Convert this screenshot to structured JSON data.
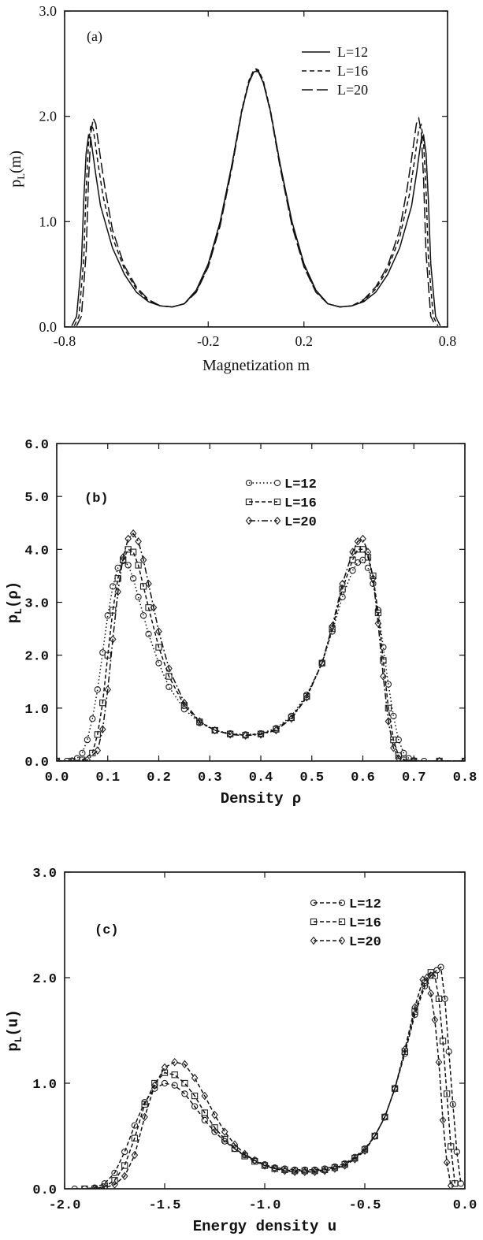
{
  "chart_data": [
    {
      "type": "line",
      "panel": "(a)",
      "xlabel": "Magnetization m",
      "ylabel": "p_L(m)",
      "xlim": [
        -0.8,
        0.8
      ],
      "ylim": [
        0.0,
        3.0
      ],
      "xticks": [
        "-0.8",
        "-0.2",
        "0.2",
        "0.8"
      ],
      "yticks": [
        "0.0",
        "1.0",
        "2.0",
        "3.0"
      ],
      "legend_position": "top-right",
      "grid": false,
      "series": [
        {
          "name": "L=12",
          "dash": "solid",
          "x": [
            -0.77,
            -0.75,
            -0.73,
            -0.72,
            -0.71,
            -0.7,
            -0.69,
            -0.67,
            -0.65,
            -0.6,
            -0.55,
            -0.5,
            -0.45,
            -0.4,
            -0.35,
            -0.3,
            -0.25,
            -0.2,
            -0.15,
            -0.1,
            -0.06,
            -0.03,
            -0.01,
            0.0,
            0.01,
            0.03,
            0.06,
            0.1,
            0.15,
            0.2,
            0.25,
            0.3,
            0.35,
            0.4,
            0.45,
            0.5,
            0.55,
            0.6,
            0.65,
            0.67,
            0.69,
            0.7,
            0.71,
            0.72,
            0.73,
            0.75,
            0.77
          ],
          "y": [
            0.01,
            0.1,
            0.6,
            1.2,
            1.65,
            1.82,
            1.78,
            1.45,
            1.15,
            0.75,
            0.5,
            0.33,
            0.24,
            0.2,
            0.19,
            0.22,
            0.35,
            0.6,
            1.0,
            1.55,
            2.05,
            2.32,
            2.42,
            2.43,
            2.42,
            2.32,
            2.05,
            1.55,
            1.0,
            0.6,
            0.35,
            0.22,
            0.19,
            0.2,
            0.24,
            0.33,
            0.5,
            0.75,
            1.15,
            1.45,
            1.78,
            1.82,
            1.65,
            1.2,
            0.6,
            0.1,
            0.01
          ]
        },
        {
          "name": "L=16",
          "dash": "short-dash",
          "x": [
            -0.76,
            -0.74,
            -0.72,
            -0.71,
            -0.7,
            -0.69,
            -0.68,
            -0.66,
            -0.64,
            -0.6,
            -0.55,
            -0.5,
            -0.45,
            -0.4,
            -0.35,
            -0.3,
            -0.25,
            -0.2,
            -0.15,
            -0.1,
            -0.06,
            -0.03,
            -0.01,
            0.0,
            0.01,
            0.03,
            0.06,
            0.1,
            0.15,
            0.2,
            0.25,
            0.3,
            0.35,
            0.4,
            0.45,
            0.5,
            0.55,
            0.6,
            0.64,
            0.66,
            0.68,
            0.69,
            0.7,
            0.71,
            0.72,
            0.74,
            0.76
          ],
          "y": [
            0.01,
            0.1,
            0.65,
            1.3,
            1.75,
            1.92,
            1.88,
            1.55,
            1.25,
            0.85,
            0.55,
            0.36,
            0.25,
            0.2,
            0.19,
            0.22,
            0.34,
            0.58,
            0.98,
            1.55,
            2.06,
            2.34,
            2.44,
            2.45,
            2.44,
            2.34,
            2.06,
            1.55,
            0.98,
            0.58,
            0.34,
            0.22,
            0.19,
            0.2,
            0.25,
            0.36,
            0.55,
            0.85,
            1.25,
            1.55,
            1.88,
            1.92,
            1.75,
            1.3,
            0.65,
            0.1,
            0.01
          ]
        },
        {
          "name": "L=20",
          "dash": "long-dash",
          "x": [
            -0.75,
            -0.73,
            -0.71,
            -0.7,
            -0.69,
            -0.68,
            -0.67,
            -0.65,
            -0.63,
            -0.6,
            -0.55,
            -0.5,
            -0.45,
            -0.4,
            -0.35,
            -0.3,
            -0.25,
            -0.2,
            -0.15,
            -0.1,
            -0.06,
            -0.03,
            -0.01,
            0.0,
            0.01,
            0.03,
            0.06,
            0.1,
            0.15,
            0.2,
            0.25,
            0.3,
            0.35,
            0.4,
            0.45,
            0.5,
            0.55,
            0.6,
            0.63,
            0.65,
            0.67,
            0.68,
            0.69,
            0.7,
            0.71,
            0.73,
            0.75
          ],
          "y": [
            0.01,
            0.1,
            0.7,
            1.4,
            1.85,
            1.98,
            1.93,
            1.6,
            1.3,
            0.92,
            0.58,
            0.38,
            0.26,
            0.2,
            0.19,
            0.22,
            0.33,
            0.57,
            0.96,
            1.52,
            2.04,
            2.33,
            2.43,
            2.44,
            2.43,
            2.33,
            2.04,
            1.52,
            0.96,
            0.57,
            0.33,
            0.22,
            0.19,
            0.2,
            0.26,
            0.38,
            0.58,
            0.92,
            1.3,
            1.6,
            1.93,
            1.98,
            1.85,
            1.4,
            0.7,
            0.1,
            0.01
          ]
        }
      ]
    },
    {
      "type": "line",
      "panel": "(b)",
      "xlabel": "Density ρ",
      "ylabel": "p_L(ρ)",
      "xlim": [
        0.0,
        0.8
      ],
      "ylim": [
        0.0,
        6.0
      ],
      "xticks": [
        "0.0",
        "0.1",
        "0.2",
        "0.3",
        "0.4",
        "0.5",
        "0.6",
        "0.7",
        "0.8"
      ],
      "yticks": [
        "0.0",
        "1.0",
        "2.0",
        "3.0",
        "4.0",
        "5.0",
        "6.0"
      ],
      "legend_position": "top-center",
      "grid": false,
      "series": [
        {
          "name": "L=12",
          "marker": "circle",
          "line": "dotted",
          "x": [
            0.0,
            0.02,
            0.04,
            0.05,
            0.06,
            0.07,
            0.08,
            0.09,
            0.1,
            0.11,
            0.12,
            0.13,
            0.14,
            0.15,
            0.16,
            0.17,
            0.18,
            0.2,
            0.22,
            0.25,
            0.28,
            0.31,
            0.34,
            0.37,
            0.4,
            0.43,
            0.46,
            0.49,
            0.52,
            0.54,
            0.56,
            0.58,
            0.59,
            0.6,
            0.61,
            0.62,
            0.63,
            0.64,
            0.65,
            0.66,
            0.67,
            0.68,
            0.69,
            0.7,
            0.72,
            0.75,
            0.8
          ],
          "y": [
            0.0,
            0.0,
            0.05,
            0.15,
            0.4,
            0.8,
            1.35,
            2.05,
            2.75,
            3.3,
            3.65,
            3.78,
            3.7,
            3.45,
            3.1,
            2.75,
            2.4,
            1.85,
            1.4,
            0.98,
            0.72,
            0.58,
            0.52,
            0.5,
            0.52,
            0.62,
            0.85,
            1.25,
            1.85,
            2.45,
            3.1,
            3.6,
            3.75,
            3.8,
            3.65,
            3.35,
            2.85,
            2.15,
            1.45,
            0.85,
            0.4,
            0.15,
            0.05,
            0.01,
            0.0,
            0.0,
            0.0
          ]
        },
        {
          "name": "L=16",
          "marker": "square",
          "line": "dashed",
          "x": [
            0.0,
            0.03,
            0.05,
            0.07,
            0.08,
            0.09,
            0.1,
            0.11,
            0.12,
            0.13,
            0.14,
            0.15,
            0.16,
            0.17,
            0.18,
            0.2,
            0.22,
            0.25,
            0.28,
            0.31,
            0.34,
            0.37,
            0.4,
            0.43,
            0.46,
            0.49,
            0.52,
            0.54,
            0.56,
            0.58,
            0.59,
            0.6,
            0.61,
            0.62,
            0.63,
            0.64,
            0.65,
            0.66,
            0.67,
            0.68,
            0.7,
            0.75,
            0.8
          ],
          "y": [
            0.0,
            0.0,
            0.02,
            0.15,
            0.5,
            1.1,
            2.0,
            2.85,
            3.45,
            3.8,
            4.0,
            3.95,
            3.7,
            3.3,
            2.9,
            2.15,
            1.6,
            1.05,
            0.74,
            0.58,
            0.51,
            0.49,
            0.51,
            0.6,
            0.82,
            1.22,
            1.85,
            2.5,
            3.25,
            3.8,
            4.0,
            4.0,
            3.85,
            3.5,
            2.8,
            1.9,
            1.0,
            0.4,
            0.1,
            0.02,
            0.0,
            0.0,
            0.0
          ]
        },
        {
          "name": "L=20",
          "marker": "diamond",
          "line": "dash-dot",
          "x": [
            0.0,
            0.03,
            0.06,
            0.08,
            0.09,
            0.1,
            0.11,
            0.12,
            0.13,
            0.14,
            0.15,
            0.16,
            0.17,
            0.18,
            0.19,
            0.2,
            0.22,
            0.25,
            0.28,
            0.31,
            0.34,
            0.37,
            0.4,
            0.43,
            0.46,
            0.49,
            0.52,
            0.54,
            0.56,
            0.58,
            0.59,
            0.6,
            0.61,
            0.62,
            0.63,
            0.64,
            0.65,
            0.66,
            0.67,
            0.7,
            0.75,
            0.8
          ],
          "y": [
            0.0,
            0.0,
            0.02,
            0.2,
            0.6,
            1.35,
            2.3,
            3.2,
            3.85,
            4.2,
            4.3,
            4.15,
            3.8,
            3.35,
            2.9,
            2.45,
            1.75,
            1.1,
            0.75,
            0.58,
            0.5,
            0.48,
            0.5,
            0.58,
            0.8,
            1.2,
            1.85,
            2.55,
            3.35,
            3.95,
            4.15,
            4.2,
            3.95,
            3.45,
            2.6,
            1.6,
            0.75,
            0.25,
            0.05,
            0.0,
            0.0,
            0.0
          ]
        }
      ]
    },
    {
      "type": "line",
      "panel": "(c)",
      "xlabel": "Energy density u",
      "ylabel": "p_L(u)",
      "xlim": [
        -2.0,
        0.0
      ],
      "ylim": [
        0.0,
        3.0
      ],
      "xticks": [
        "-2.0",
        "-1.5",
        "-1.0",
        "-0.5",
        "0.0"
      ],
      "yticks": [
        "0.0",
        "1.0",
        "2.0",
        "3.0"
      ],
      "legend_position": "top-right",
      "grid": false,
      "series": [
        {
          "name": "L=12",
          "marker": "circle",
          "line": "dashed",
          "x": [
            -1.95,
            -1.9,
            -1.85,
            -1.8,
            -1.75,
            -1.7,
            -1.65,
            -1.6,
            -1.55,
            -1.5,
            -1.45,
            -1.4,
            -1.35,
            -1.3,
            -1.25,
            -1.2,
            -1.15,
            -1.1,
            -1.05,
            -1.0,
            -0.95,
            -0.9,
            -0.85,
            -0.8,
            -0.75,
            -0.7,
            -0.65,
            -0.6,
            -0.55,
            -0.5,
            -0.45,
            -0.4,
            -0.35,
            -0.3,
            -0.25,
            -0.2,
            -0.17,
            -0.14,
            -0.12,
            -0.1,
            -0.08,
            -0.06,
            -0.04,
            -0.02
          ],
          "y": [
            0.0,
            0.0,
            0.01,
            0.05,
            0.15,
            0.35,
            0.6,
            0.82,
            0.95,
            1.0,
            0.98,
            0.9,
            0.78,
            0.65,
            0.54,
            0.45,
            0.38,
            0.32,
            0.27,
            0.23,
            0.2,
            0.19,
            0.18,
            0.18,
            0.18,
            0.19,
            0.21,
            0.24,
            0.3,
            0.38,
            0.5,
            0.68,
            0.95,
            1.28,
            1.65,
            1.92,
            2.02,
            2.07,
            2.1,
            1.8,
            1.3,
            0.8,
            0.35,
            0.05
          ]
        },
        {
          "name": "L=16",
          "marker": "square",
          "line": "dashed",
          "x": [
            -1.9,
            -1.85,
            -1.8,
            -1.75,
            -1.7,
            -1.65,
            -1.6,
            -1.55,
            -1.5,
            -1.45,
            -1.4,
            -1.35,
            -1.3,
            -1.25,
            -1.2,
            -1.15,
            -1.1,
            -1.05,
            -1.0,
            -0.95,
            -0.9,
            -0.85,
            -0.8,
            -0.75,
            -0.7,
            -0.65,
            -0.6,
            -0.55,
            -0.5,
            -0.45,
            -0.4,
            -0.35,
            -0.3,
            -0.25,
            -0.2,
            -0.17,
            -0.15,
            -0.13,
            -0.11,
            -0.09,
            -0.07,
            -0.05
          ],
          "y": [
            0.0,
            0.0,
            0.02,
            0.08,
            0.22,
            0.48,
            0.8,
            1.0,
            1.1,
            1.08,
            1.0,
            0.88,
            0.72,
            0.58,
            0.47,
            0.38,
            0.31,
            0.26,
            0.22,
            0.19,
            0.18,
            0.17,
            0.17,
            0.17,
            0.18,
            0.2,
            0.23,
            0.29,
            0.37,
            0.5,
            0.68,
            0.95,
            1.3,
            1.68,
            1.95,
            2.05,
            2.02,
            1.8,
            1.4,
            0.9,
            0.4,
            0.05
          ]
        },
        {
          "name": "L=20",
          "marker": "diamond",
          "line": "dashed",
          "x": [
            -1.85,
            -1.8,
            -1.75,
            -1.7,
            -1.65,
            -1.6,
            -1.55,
            -1.5,
            -1.45,
            -1.4,
            -1.35,
            -1.3,
            -1.25,
            -1.2,
            -1.15,
            -1.1,
            -1.05,
            -1.0,
            -0.95,
            -0.9,
            -0.85,
            -0.8,
            -0.75,
            -0.7,
            -0.65,
            -0.6,
            -0.55,
            -0.5,
            -0.45,
            -0.4,
            -0.35,
            -0.3,
            -0.25,
            -0.21,
            -0.19,
            -0.17,
            -0.15,
            -0.13,
            -0.11,
            -0.09,
            -0.07
          ],
          "y": [
            0.0,
            0.01,
            0.04,
            0.12,
            0.32,
            0.68,
            0.98,
            1.15,
            1.2,
            1.18,
            1.05,
            0.88,
            0.7,
            0.54,
            0.42,
            0.33,
            0.27,
            0.22,
            0.19,
            0.17,
            0.16,
            0.16,
            0.16,
            0.17,
            0.19,
            0.22,
            0.28,
            0.36,
            0.5,
            0.68,
            0.95,
            1.32,
            1.72,
            1.98,
            2.0,
            1.85,
            1.6,
            1.2,
            0.65,
            0.25,
            0.03
          ]
        }
      ]
    }
  ]
}
